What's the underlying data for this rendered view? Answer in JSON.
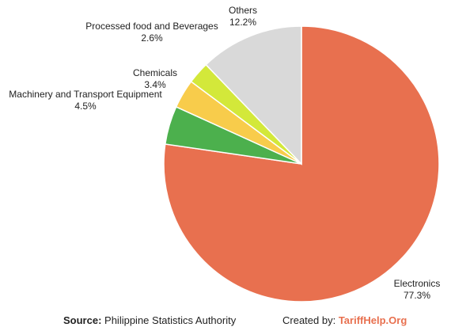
{
  "chart_data": {
    "type": "pie",
    "title": "",
    "start_angle": "12 o'clock",
    "direction": "clockwise",
    "slices": [
      {
        "label": "Electronics",
        "value": 77.3,
        "value_label": "77.3%",
        "color": "#E8704F"
      },
      {
        "label": "Machinery and Transport Equipment",
        "value": 4.5,
        "value_label": "4.5%",
        "color": "#4CB04D"
      },
      {
        "label": "Chemicals",
        "value": 3.4,
        "value_label": "3.4%",
        "color": "#F8CC4B"
      },
      {
        "label": "Processed food and Beverages",
        "value": 2.6,
        "value_label": "2.6%",
        "color": "#D3E83A"
      },
      {
        "label": "Others",
        "value": 12.2,
        "value_label": "12.2%",
        "color": "#D9D9D9"
      }
    ]
  },
  "footer": {
    "source_prefix": "Source:",
    "source_text": "Philippine Statistics Authority",
    "credit_prefix": "Created by:",
    "credit_brand": "TariffHelp.Org",
    "brand_color": "#E8704F"
  }
}
